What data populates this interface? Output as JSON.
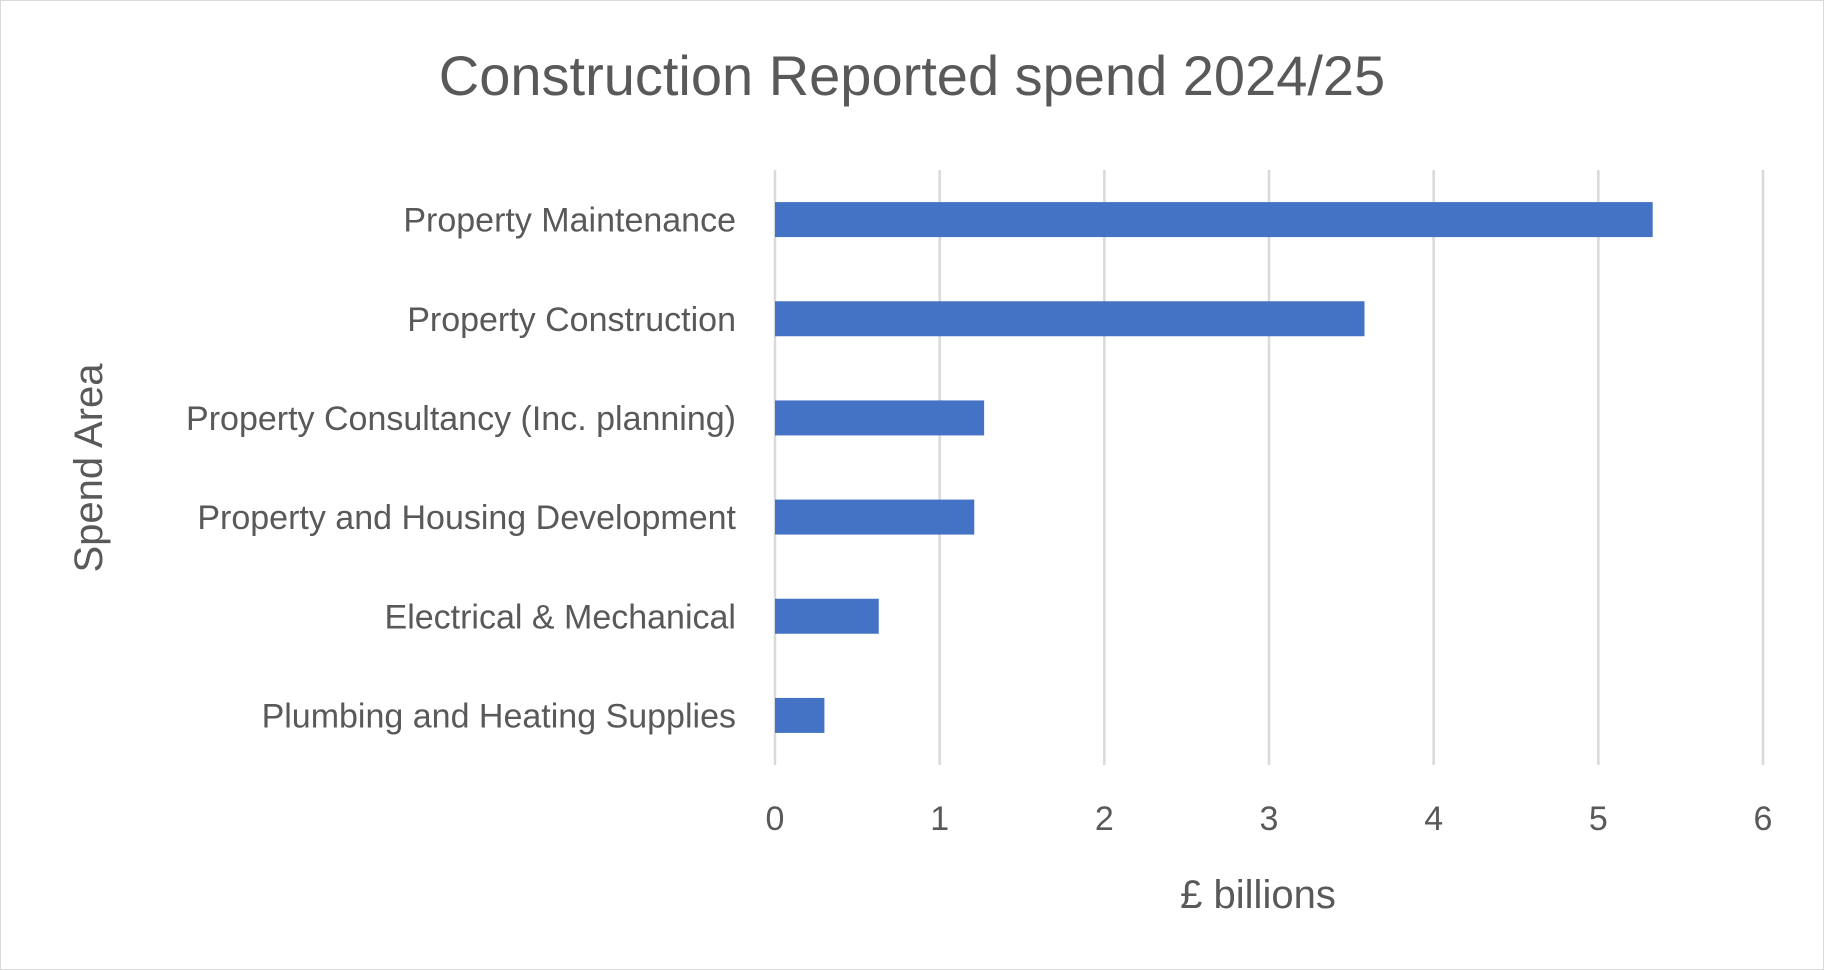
{
  "chart_data": {
    "type": "bar",
    "orientation": "horizontal",
    "title": "Construction Reported spend 2024/25",
    "xlabel": "£ billions",
    "ylabel": "Spend Area",
    "categories": [
      "Property Maintenance",
      "Property Construction",
      "Property Consultancy (Inc. planning)",
      "Property and Housing Development",
      "Electrical & Mechanical",
      "Plumbing and Heating Supplies"
    ],
    "values": [
      5.33,
      3.58,
      1.27,
      1.21,
      0.63,
      0.3
    ],
    "xlim": [
      0,
      6
    ],
    "xticks": [
      "0",
      "1",
      "2",
      "3",
      "4",
      "5",
      "6"
    ],
    "grid": "vertical",
    "legend": "none",
    "bar_color": "#4472c4"
  }
}
